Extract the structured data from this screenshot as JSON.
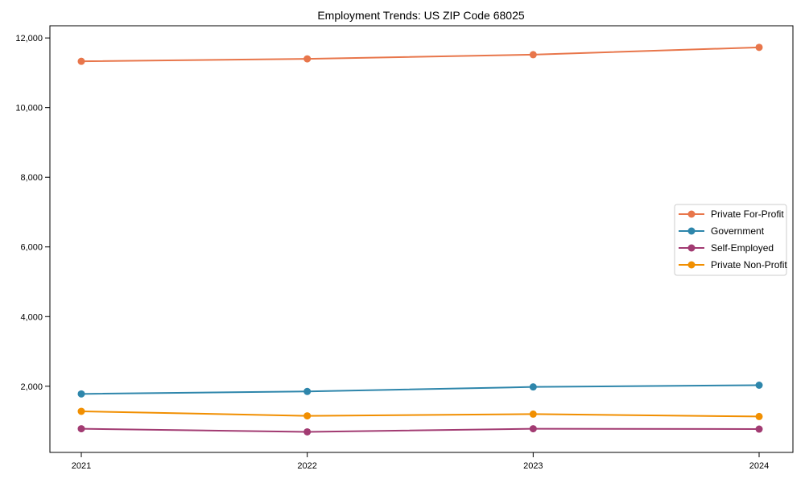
{
  "page": {
    "background": "#ffffff"
  },
  "chart_data": {
    "type": "line",
    "title": "Employment Trends: US ZIP Code 68025",
    "categories": [
      "2021",
      "2022",
      "2023",
      "2024"
    ],
    "series": [
      {
        "name": "Private For-Profit",
        "color": "#E8764B",
        "values": [
          11330,
          11400,
          11520,
          11730
        ]
      },
      {
        "name": "Government",
        "color": "#2E86AB",
        "values": [
          1780,
          1850,
          1980,
          2030
        ]
      },
      {
        "name": "Self-Employed",
        "color": "#A23B72",
        "values": [
          780,
          690,
          780,
          770
        ]
      },
      {
        "name": "Private Non-Profit",
        "color": "#F18F01",
        "values": [
          1280,
          1150,
          1200,
          1130
        ]
      }
    ],
    "yticks": [
      {
        "value": 2000,
        "label": "2,000"
      },
      {
        "value": 4000,
        "label": "4,000"
      },
      {
        "value": 6000,
        "label": "6,000"
      },
      {
        "value": 8000,
        "label": "8,000"
      },
      {
        "value": 10000,
        "label": "10,000"
      },
      {
        "value": 12000,
        "label": "12,000"
      }
    ],
    "ylim": [
      100,
      12350
    ],
    "xlabel": "",
    "ylabel": "",
    "grid": false,
    "legend_position": "center-right",
    "marker": "circle",
    "axis_color": "#000000",
    "legend_border_color": "#cccccc",
    "legend_background": "#ffffff"
  }
}
